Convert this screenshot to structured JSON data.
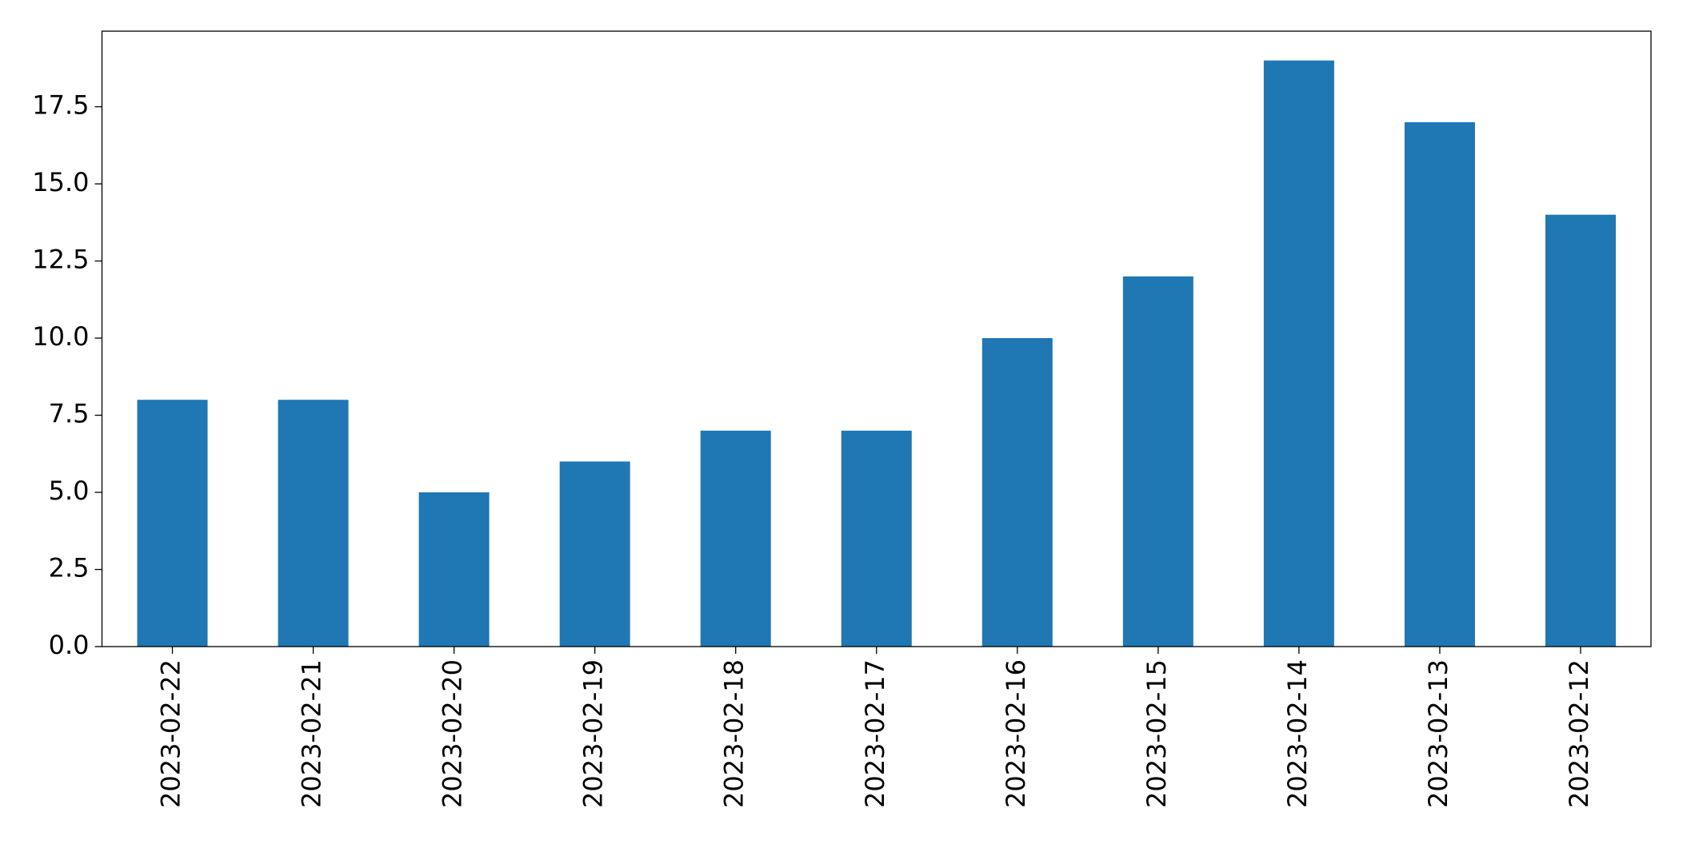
{
  "chart_data": {
    "type": "bar",
    "categories": [
      "2023-02-22",
      "2023-02-21",
      "2023-02-20",
      "2023-02-19",
      "2023-02-18",
      "2023-02-17",
      "2023-02-16",
      "2023-02-15",
      "2023-02-14",
      "2023-02-13",
      "2023-02-12"
    ],
    "values": [
      8,
      8,
      5,
      6,
      7,
      7,
      10,
      12,
      19,
      17,
      14
    ],
    "color": "#1f77b4",
    "ylim": [
      0,
      19.95
    ],
    "yticks": [
      {
        "value": 0,
        "label": "0.0"
      },
      2.5,
      {
        "value": 5,
        "label": "5.0"
      },
      7.5,
      {
        "value": 10,
        "label": "10.0"
      },
      12.5,
      {
        "value": 15,
        "label": "15.0"
      },
      17.5
    ],
    "grid": false
  }
}
